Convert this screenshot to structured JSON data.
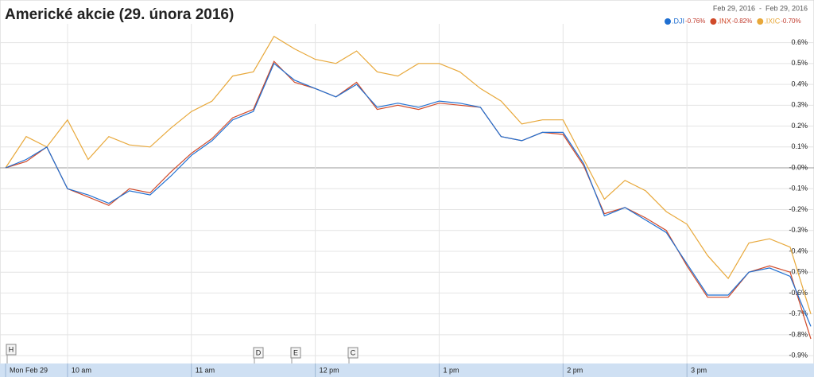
{
  "chart_data": {
    "type": "line",
    "title": "Americké akcie (29. února 2016)",
    "date_range": "Feb 29, 2016  -  Feb 29, 2016",
    "categories": [
      "Mon Feb 29",
      null,
      null,
      "10 am",
      null,
      null,
      null,
      null,
      null,
      "11 am",
      null,
      null,
      null,
      null,
      null,
      "12 pm",
      null,
      null,
      null,
      null,
      null,
      "1 pm",
      null,
      null,
      null,
      null,
      null,
      "2 pm",
      null,
      null,
      null,
      null,
      null,
      "3 pm",
      null,
      null,
      null,
      null,
      null,
      null
    ],
    "series": [
      {
        "name": ".DJI",
        "change": "-0.76%",
        "color": "#1f6fd1",
        "values": [
          0,
          0.04,
          0.1,
          -0.1,
          -0.13,
          -0.17,
          -0.11,
          -0.13,
          -0.04,
          0.06,
          0.13,
          0.23,
          0.27,
          0.5,
          0.42,
          0.38,
          0.34,
          0.4,
          0.29,
          0.31,
          0.29,
          0.32,
          0.31,
          0.29,
          0.15,
          0.13,
          0.17,
          0.17,
          0.02,
          -0.23,
          -0.19,
          -0.25,
          -0.31,
          -0.46,
          -0.61,
          -0.61,
          -0.5,
          -0.48,
          -0.52,
          -0.76
        ]
      },
      {
        "name": ".INX",
        "change": "-0.82%",
        "color": "#d04a2a",
        "values": [
          0,
          0.03,
          0.1,
          -0.1,
          -0.14,
          -0.18,
          -0.1,
          -0.12,
          -0.02,
          0.07,
          0.14,
          0.24,
          0.28,
          0.51,
          0.41,
          0.38,
          0.34,
          0.41,
          0.28,
          0.3,
          0.28,
          0.31,
          0.3,
          0.29,
          0.15,
          0.13,
          0.17,
          0.16,
          0.01,
          -0.22,
          -0.19,
          -0.24,
          -0.3,
          -0.47,
          -0.62,
          -0.62,
          -0.5,
          -0.47,
          -0.5,
          -0.82
        ]
      },
      {
        "name": ".IXIC",
        "change": "-0.70%",
        "color": "#e8a83a",
        "values": [
          0,
          0.15,
          0.1,
          0.23,
          0.04,
          0.15,
          0.11,
          0.1,
          0.19,
          0.27,
          0.32,
          0.44,
          0.46,
          0.63,
          0.57,
          0.52,
          0.5,
          0.56,
          0.46,
          0.44,
          0.5,
          0.5,
          0.46,
          0.38,
          0.32,
          0.21,
          0.23,
          0.23,
          0.04,
          -0.15,
          -0.06,
          -0.11,
          -0.21,
          -0.27,
          -0.42,
          -0.53,
          -0.36,
          -0.34,
          -0.38,
          -0.7
        ]
      }
    ],
    "ylim": [
      -0.93,
      0.69
    ],
    "yticks": [
      {
        "value": -0.9,
        "label": "-0.9%"
      },
      {
        "value": -0.8,
        "label": "-0.8%"
      },
      {
        "value": -0.7,
        "label": "-0.7%"
      },
      {
        "value": -0.6,
        "label": "-0.6%"
      },
      {
        "value": -0.5,
        "label": "-0.5%"
      },
      {
        "value": -0.4,
        "label": "-0.4%"
      },
      {
        "value": -0.3,
        "label": "-0.3%"
      },
      {
        "value": -0.2,
        "label": "-0.2%"
      },
      {
        "value": -0.1,
        "label": "-0.1%"
      },
      {
        "value": 0,
        "label": "-0.0%"
      },
      {
        "value": 0.1,
        "label": "0.1%"
      },
      {
        "value": 0.2,
        "label": "0.2%"
      },
      {
        "value": 0.3,
        "label": "0.3%"
      },
      {
        "value": 0.4,
        "label": "0.4%"
      },
      {
        "value": 0.5,
        "label": "0.5%"
      },
      {
        "value": 0.6,
        "label": "0.6%"
      }
    ],
    "grid": true,
    "flags": [
      "H",
      "D",
      "E",
      "C"
    ]
  }
}
